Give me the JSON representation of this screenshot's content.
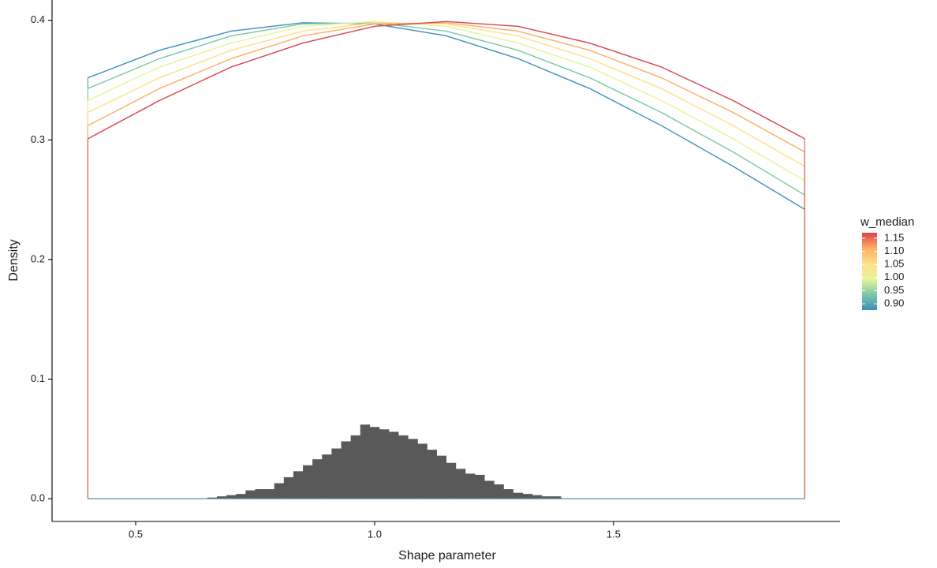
{
  "chart_data": {
    "type": "line",
    "x_label": "Shape parameter",
    "y_label": "Density",
    "xlim": [
      0.325,
      1.974
    ],
    "ylim": [
      -0.019,
      0.417
    ],
    "xticks": [
      0.5,
      {
        "value": 1,
        "label": "1.0"
      },
      1.5
    ],
    "yticks": [
      {
        "value": 0,
        "label": "0.0"
      },
      0.1,
      0.2,
      0.3,
      0.4
    ],
    "x": [
      0.4,
      0.55,
      0.7,
      0.85,
      1.0,
      1.15,
      1.3,
      1.45,
      1.6,
      1.75,
      1.9
    ],
    "series": [
      {
        "color": "#3d8fbf",
        "values": [
          0.352,
          0.375,
          0.391,
          0.398,
          0.397,
          0.387,
          0.368,
          0.343,
          0.312,
          0.278,
          0.242
        ]
      },
      {
        "color": "#7cc7a4",
        "values": [
          0.343,
          0.368,
          0.387,
          0.397,
          0.398,
          0.391,
          0.375,
          0.352,
          0.323,
          0.29,
          0.254
        ]
      },
      {
        "color": "#e6f598",
        "values": [
          0.333,
          0.361,
          0.381,
          0.395,
          0.399,
          0.395,
          0.381,
          0.361,
          0.333,
          0.301,
          0.266
        ]
      },
      {
        "color": "#fee08b",
        "values": [
          0.323,
          0.352,
          0.375,
          0.391,
          0.398,
          0.397,
          0.387,
          0.368,
          0.343,
          0.312,
          0.278
        ]
      },
      {
        "color": "#fdae61",
        "values": [
          0.312,
          0.343,
          0.368,
          0.387,
          0.397,
          0.398,
          0.391,
          0.375,
          0.352,
          0.323,
          0.29
        ]
      },
      {
        "color": "#d9444d",
        "values": [
          0.301,
          0.333,
          0.361,
          0.381,
          0.395,
          0.399,
          0.395,
          0.381,
          0.361,
          0.333,
          0.301
        ]
      }
    ],
    "histogram": {
      "type": "histogram",
      "color": "#595959",
      "bins": [
        0.65,
        0.67,
        0.69,
        0.71,
        0.73,
        0.75,
        0.77,
        0.79,
        0.81,
        0.83,
        0.85,
        0.87,
        0.89,
        0.91,
        0.93,
        0.95,
        0.97,
        0.99,
        1.01,
        1.03,
        1.05,
        1.07,
        1.09,
        1.11,
        1.13,
        1.15,
        1.17,
        1.19,
        1.21,
        1.23,
        1.25,
        1.27,
        1.29,
        1.31,
        1.33,
        1.35,
        1.37,
        1.39
      ],
      "values": [
        0.001,
        0.002,
        0.003,
        0.004,
        0.007,
        0.008,
        0.008,
        0.013,
        0.018,
        0.023,
        0.028,
        0.033,
        0.037,
        0.042,
        0.048,
        0.053,
        0.062,
        0.06,
        0.058,
        0.056,
        0.053,
        0.05,
        0.046,
        0.041,
        0.036,
        0.03,
        0.025,
        0.021,
        0.02,
        0.015,
        0.012,
        0.008,
        0.005,
        0.004,
        0.003,
        0.002,
        0.002
      ]
    },
    "legend": {
      "title": "w_median",
      "clim": [
        0.876,
        1.171
      ],
      "colors": [
        "#3d8fbf",
        "#7cc7a4",
        "#e6f598",
        "#fee08b",
        "#fdae61",
        "#d9444d"
      ],
      "ticks": [
        {
          "value": 0.9,
          "label": "0.90"
        },
        0.95,
        {
          "value": 1,
          "label": "1.00"
        },
        1.05,
        {
          "value": 1.1,
          "label": "1.10"
        },
        1.15
      ]
    }
  }
}
